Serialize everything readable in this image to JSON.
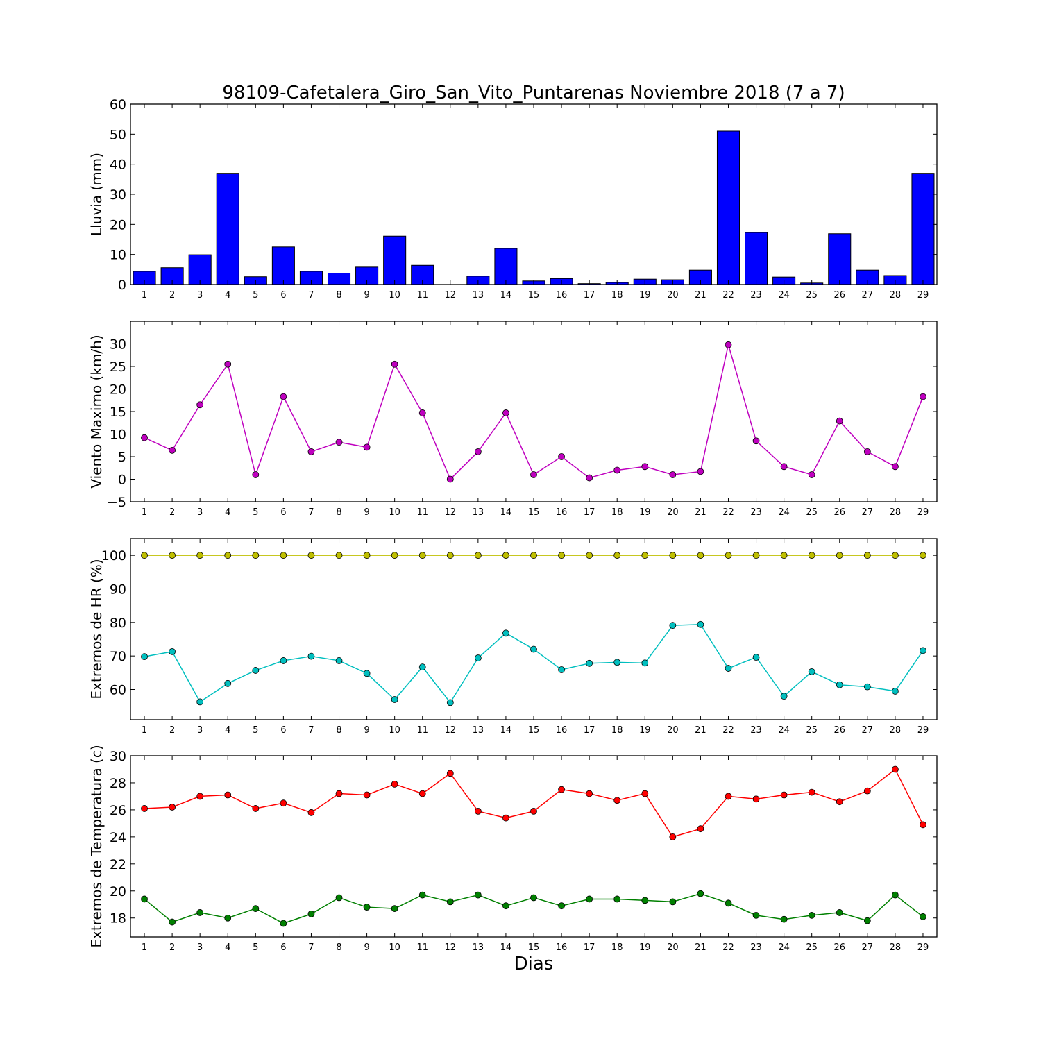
{
  "title": "98109-Cafetalera_Giro_San_Vito_Puntarenas Noviembre 2018  (7 a 7)",
  "xlabel": "Dias",
  "days": [
    1,
    2,
    3,
    4,
    5,
    6,
    7,
    8,
    9,
    10,
    11,
    12,
    13,
    14,
    15,
    16,
    17,
    18,
    19,
    20,
    21,
    22,
    23,
    24,
    25,
    26,
    27,
    28,
    29
  ],
  "chart_data": [
    {
      "type": "bar",
      "ylabel": "Lluvia (mm)",
      "ylim": [
        0,
        60
      ],
      "yticks": [
        0,
        10,
        20,
        30,
        40,
        50,
        60
      ],
      "series": [
        {
          "color": "#0000ff",
          "values": [
            4.4,
            5.6,
            9.9,
            37.0,
            2.6,
            12.5,
            4.4,
            3.8,
            5.8,
            16.1,
            6.4,
            0.0,
            2.8,
            12.0,
            1.2,
            2.0,
            0.3,
            0.7,
            1.8,
            1.6,
            4.8,
            51.0,
            17.3,
            2.5,
            0.5,
            16.9,
            4.8,
            3.0,
            37.0
          ]
        }
      ]
    },
    {
      "type": "line",
      "ylabel": "Viento Maximo (km/h)",
      "ylim": [
        -5,
        35
      ],
      "yticks": [
        -5,
        0,
        5,
        10,
        15,
        20,
        25,
        30
      ],
      "series": [
        {
          "color": "#bf00bf",
          "values": [
            9.2,
            6.4,
            16.5,
            25.5,
            1.0,
            18.3,
            6.1,
            8.2,
            7.1,
            25.5,
            14.7,
            0.0,
            6.1,
            14.7,
            1.0,
            5.0,
            0.3,
            2.0,
            2.8,
            1.0,
            1.7,
            29.8,
            8.5,
            2.8,
            1.0,
            12.9,
            6.1,
            2.8,
            18.3
          ]
        }
      ]
    },
    {
      "type": "line",
      "ylabel": "Extremos de HR (%)",
      "ylim": [
        51,
        105
      ],
      "yticks": [
        60,
        70,
        80,
        90,
        100
      ],
      "series": [
        {
          "color": "#bfbf00",
          "values": [
            100,
            100,
            100,
            100,
            100,
            100,
            100,
            100,
            100,
            100,
            100,
            100,
            100,
            100,
            100,
            100,
            100,
            100,
            100,
            100,
            100,
            100,
            100,
            100,
            100,
            100,
            100,
            100,
            100
          ]
        },
        {
          "color": "#00bfbf",
          "values": [
            69.8,
            71.3,
            56.3,
            61.8,
            65.7,
            68.6,
            69.9,
            68.6,
            64.8,
            57.0,
            66.7,
            56.1,
            69.4,
            76.8,
            72.0,
            65.9,
            67.8,
            68.1,
            67.9,
            79.1,
            79.4,
            66.3,
            69.6,
            58.0,
            65.3,
            61.4,
            60.8,
            59.5,
            71.6
          ]
        }
      ]
    },
    {
      "type": "line",
      "ylabel": "Extremos de Temperatura (c)",
      "ylim": [
        16.6,
        30
      ],
      "yticks": [
        18,
        20,
        22,
        24,
        26,
        28,
        30
      ],
      "series": [
        {
          "color": "#ff0000",
          "values": [
            26.1,
            26.2,
            27.0,
            27.1,
            26.1,
            26.5,
            25.8,
            27.2,
            27.1,
            27.9,
            27.2,
            28.7,
            25.9,
            25.4,
            25.9,
            27.5,
            27.2,
            26.7,
            27.2,
            24.0,
            24.6,
            27.0,
            26.8,
            27.1,
            27.3,
            26.6,
            27.4,
            29.0,
            24.9
          ]
        },
        {
          "color": "#008000",
          "values": [
            19.4,
            17.7,
            18.4,
            18.0,
            18.7,
            17.6,
            18.3,
            19.5,
            18.8,
            18.7,
            19.7,
            19.2,
            19.7,
            18.9,
            19.5,
            18.9,
            19.4,
            19.4,
            19.3,
            19.2,
            19.8,
            19.1,
            18.2,
            17.9,
            18.2,
            18.4,
            17.8,
            19.7,
            18.1
          ]
        }
      ]
    }
  ]
}
